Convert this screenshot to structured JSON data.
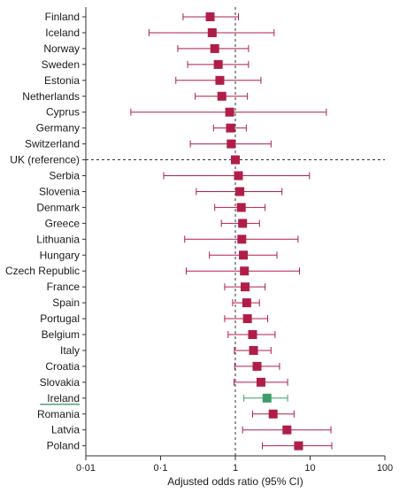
{
  "chart_data": {
    "type": "forest",
    "xlabel": "Adjusted odds ratio (95% CI)",
    "x_scale": "log",
    "xlim": [
      0.01,
      100
    ],
    "x_ticks": [
      "0·01",
      "0·1",
      "1",
      "10",
      "100"
    ],
    "x_tick_values": [
      0.01,
      0.1,
      1,
      10,
      100
    ],
    "reference_line": 1,
    "colors": {
      "default": "#b01e48",
      "highlight": "#3e9b6a",
      "axis": "#333333",
      "underline": "#3e9b6a"
    },
    "highlight_category": "Ireland",
    "reference_category": "UK (reference)",
    "categories": [
      "Finland",
      "Iceland",
      "Norway",
      "Sweden",
      "Estonia",
      "Netherlands",
      "Cyprus",
      "Germany",
      "Switzerland",
      "UK (reference)",
      "Serbia",
      "Slovenia",
      "Denmark",
      "Greece",
      "Lithuania",
      "Hungary",
      "Czech Republic",
      "France",
      "Spain",
      "Portugal",
      "Belgium",
      "Italy",
      "Croatia",
      "Slovakia",
      "Ireland",
      "Romania",
      "Latvia",
      "Poland"
    ],
    "estimates": [
      0.46,
      0.49,
      0.53,
      0.59,
      0.62,
      0.66,
      0.84,
      0.86,
      0.88,
      1.0,
      1.1,
      1.15,
      1.2,
      1.25,
      1.22,
      1.28,
      1.32,
      1.35,
      1.42,
      1.45,
      1.7,
      1.75,
      1.95,
      2.2,
      2.65,
      3.2,
      4.9,
      7.0
    ],
    "ci_lower": [
      0.2,
      0.07,
      0.17,
      0.23,
      0.16,
      0.29,
      0.04,
      0.51,
      0.25,
      null,
      0.11,
      0.3,
      0.53,
      0.65,
      0.21,
      0.45,
      0.22,
      0.72,
      0.92,
      0.72,
      0.8,
      0.97,
      0.98,
      0.96,
      1.3,
      1.7,
      1.25,
      2.3
    ],
    "ci_upper": [
      1.1,
      3.3,
      1.5,
      1.5,
      2.2,
      1.45,
      16.5,
      1.4,
      3.0,
      null,
      9.8,
      4.2,
      2.5,
      2.1,
      6.9,
      3.6,
      7.2,
      2.5,
      2.1,
      2.7,
      3.4,
      3.0,
      3.9,
      5.0,
      5.0,
      6.1,
      19.0,
      19.5
    ]
  }
}
